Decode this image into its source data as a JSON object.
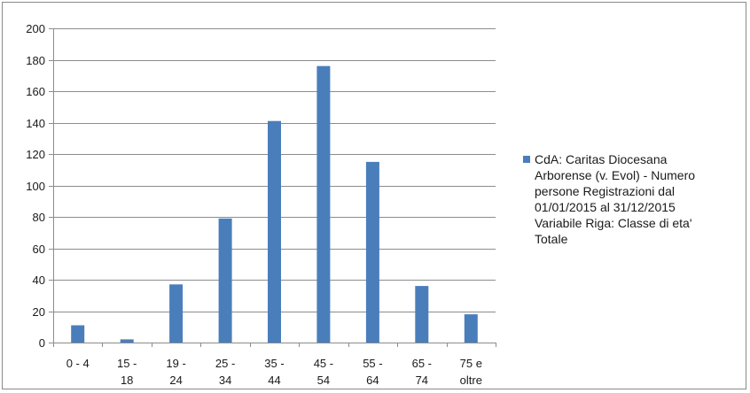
{
  "chart_data": {
    "type": "bar",
    "categories": [
      "0 - 4",
      "15 - 18",
      "19 - 24",
      "25 - 34",
      "35 - 44",
      "45 - 54",
      "55 - 64",
      "65 - 74",
      "75 e oltre"
    ],
    "category_lines": [
      [
        "0 - 4"
      ],
      [
        "15 -",
        "18"
      ],
      [
        "19 -",
        "24"
      ],
      [
        "25 -",
        "34"
      ],
      [
        "35 -",
        "44"
      ],
      [
        "45 -",
        "54"
      ],
      [
        "55 -",
        "64"
      ],
      [
        "65 -",
        "74"
      ],
      [
        "75 e",
        "oltre"
      ]
    ],
    "series": [
      {
        "name": "CdA: Caritas Diocesana Arborense (v. Evol) - Numero persone  Registrazioni dal 01/01/2015 al 31/12/2015 Variabile Riga: Classe di eta' Totale",
        "values": [
          11,
          2,
          37,
          79,
          141,
          176,
          115,
          36,
          18
        ],
        "color": "#4a7ebb"
      }
    ],
    "title": "",
    "xlabel": "",
    "ylabel": "",
    "ylim": [
      0,
      200
    ],
    "yticks": [
      0,
      20,
      40,
      60,
      80,
      100,
      120,
      140,
      160,
      180,
      200
    ],
    "grid": true,
    "legend_position": "right"
  },
  "legend": {
    "text": "CdA: Caritas Diocesana\nArborense (v. Evol) - Numero\npersone  Registrazioni dal\n01/01/2015 al 31/12/2015\nVariabile Riga: Classe di eta'\nTotale"
  },
  "colors": {
    "bar": "#4a7ebb",
    "grid": "#8c8c8c",
    "axis": "#8c8c8c"
  }
}
